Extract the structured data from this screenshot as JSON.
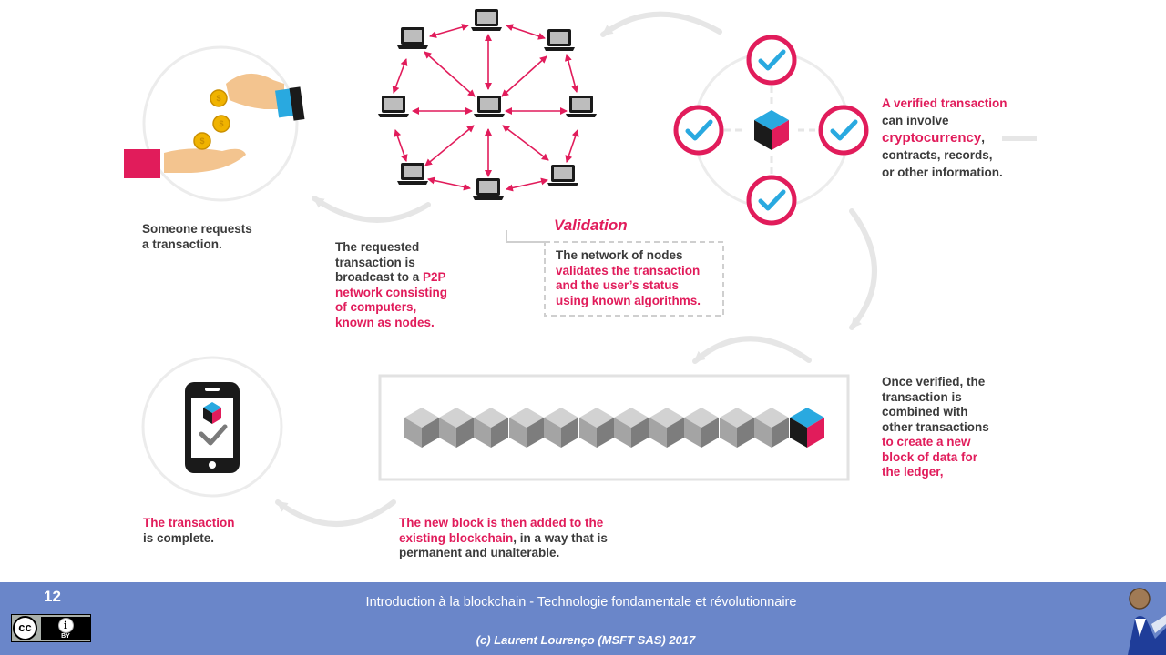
{
  "colors": {
    "pink": "#e11c5b",
    "blue": "#29a9e0",
    "text": "#3b3b3b",
    "footer": "#6a86c9"
  },
  "steps": {
    "request": {
      "line1": "Someone requests",
      "line2": "a transaction."
    },
    "broadcast": {
      "line1": "The requested",
      "line2": "transaction is",
      "line3a": "broadcast to a ",
      "line3b": "P2P",
      "line4": "network consisting",
      "line5": "of computers,",
      "line6": "known as nodes."
    },
    "validation": {
      "title": "Validation",
      "line1": "The network of nodes",
      "line2": "validates the transaction",
      "line3": "and the user’s status",
      "line4": "using known algorithms."
    },
    "verified": {
      "line1": "A verified transaction",
      "line2": "can involve",
      "line3a": "cryptocurrency",
      "line3b": ",",
      "line4": "contracts, records,",
      "line5": "or other information."
    },
    "combined": {
      "line1": "Once verified, the",
      "line2": "transaction is",
      "line3": "combined with",
      "line4": "other transactions",
      "line5": "to create a new",
      "line6": "block of data for",
      "line7": "the ledger,"
    },
    "added": {
      "line1": "The new block is then added to the",
      "line2a": "existing blockchain",
      "line2b": ", in a way that is",
      "line3": "permanent and unalterable."
    },
    "complete": {
      "line1": "The transaction",
      "line2": "is complete."
    }
  },
  "footer": {
    "slide_number": "12",
    "title": "Introduction  à la blockchain - Technologie  fondamentale  et révolutionnaire",
    "copyright": "(c) Laurent Lourenço (MSFT SAS) 2017",
    "license_cc": "cc",
    "license_by": "BY"
  },
  "icons": [
    "hand-coins-icon",
    "laptop-node-icon",
    "check-circle-icon",
    "blockchain-cube-icon",
    "smartphone-check-icon",
    "cc-by-license-icon",
    "presenter-avatar-icon"
  ]
}
